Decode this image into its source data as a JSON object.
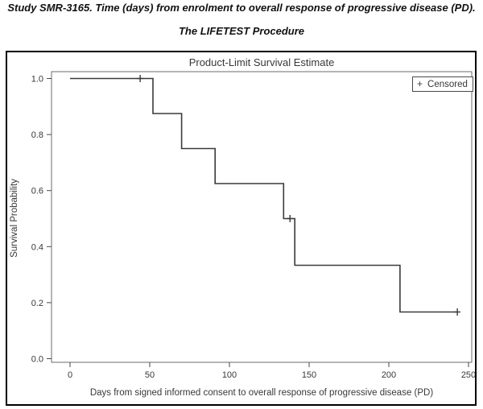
{
  "header": {
    "study_title": "Study SMR-3165. Time (days) from enrolment to overall response of progressive disease (PD).",
    "procedure_title": "The LIFETEST Procedure"
  },
  "chart_data": {
    "type": "line",
    "subtype": "kaplan-meier-step-curve",
    "title": "Product-Limit Survival Estimate",
    "xlabel": "Days from signed informed consent to overall response of progressive disease (PD)",
    "ylabel": "Survival Probability",
    "xlim": [
      0,
      250
    ],
    "ylim": [
      0.0,
      1.0
    ],
    "grid": false,
    "x_ticks": [
      {
        "v": 0,
        "label": "0"
      },
      {
        "v": 50,
        "label": "50"
      },
      {
        "v": 100,
        "label": "100"
      },
      {
        "v": 150,
        "label": "150"
      },
      {
        "v": 200,
        "label": "200"
      },
      {
        "v": 250,
        "label": "250"
      }
    ],
    "y_ticks": [
      {
        "v": 0.0,
        "label": "0.0"
      },
      {
        "v": 0.2,
        "label": "0.2"
      },
      {
        "v": 0.4,
        "label": "0.4"
      },
      {
        "v": 0.6,
        "label": "0.6"
      },
      {
        "v": 0.8,
        "label": "0.8"
      },
      {
        "v": 1.0,
        "label": "1.0"
      }
    ],
    "legend": {
      "position": "top-right",
      "marker": "+",
      "label": "Censored"
    },
    "curve_points": [
      {
        "x": 0,
        "y": 1.0
      },
      {
        "x": 52,
        "y": 1.0
      },
      {
        "x": 52,
        "y": 0.875
      },
      {
        "x": 70,
        "y": 0.875
      },
      {
        "x": 70,
        "y": 0.75
      },
      {
        "x": 91,
        "y": 0.75
      },
      {
        "x": 91,
        "y": 0.625
      },
      {
        "x": 134,
        "y": 0.625
      },
      {
        "x": 134,
        "y": 0.5
      },
      {
        "x": 141,
        "y": 0.5
      },
      {
        "x": 141,
        "y": 0.3333
      },
      {
        "x": 207,
        "y": 0.3333
      },
      {
        "x": 207,
        "y": 0.1667
      },
      {
        "x": 243,
        "y": 0.1667
      }
    ],
    "censored_points": [
      {
        "x": 44,
        "y": 1.0
      },
      {
        "x": 138,
        "y": 0.5
      },
      {
        "x": 243,
        "y": 0.1667
      }
    ]
  },
  "colors": {
    "curve": "#3a3a3a",
    "frame": "#6b6b6b",
    "tick": "#4a4a4a",
    "plot_text": "#383838",
    "title_text": "#111111",
    "border": "#000000",
    "background": "#ffffff"
  }
}
